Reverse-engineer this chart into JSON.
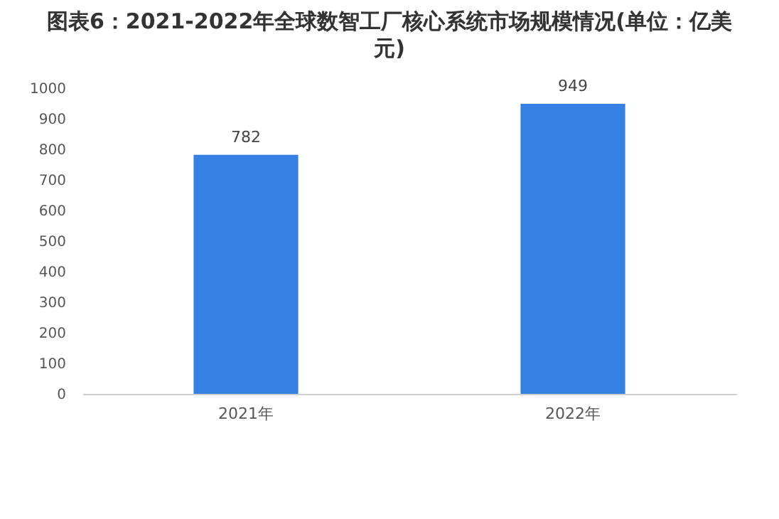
{
  "chart_data": {
    "type": "bar",
    "title": "图表6：2021-2022年全球数智工厂核心系统市场规模情况(单位：亿美元)",
    "categories": [
      "2021年",
      "2022年"
    ],
    "values": [
      782,
      949
    ],
    "color": "#3480e3",
    "ylim": [
      0,
      1000
    ],
    "yticks": [
      0,
      100,
      200,
      300,
      400,
      500,
      600,
      700,
      800,
      900,
      1000
    ],
    "grid": false,
    "data_labels": true
  }
}
